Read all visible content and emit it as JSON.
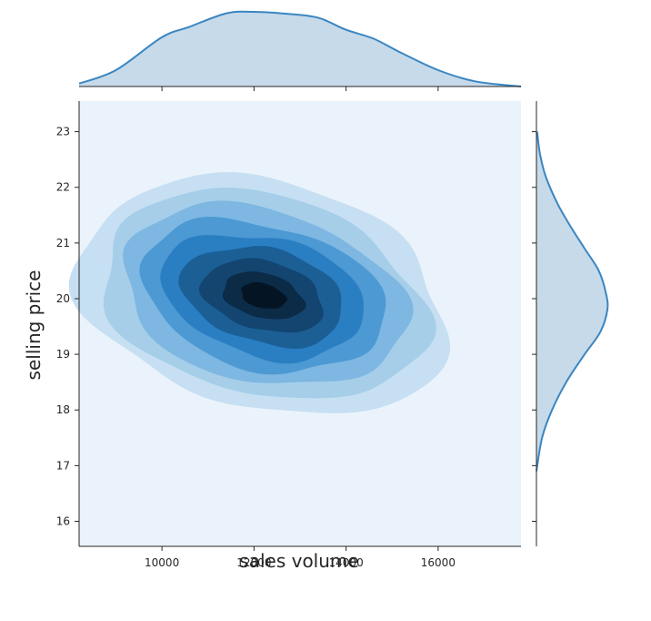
{
  "chart_data": {
    "type": "kde_joint",
    "xlabel": "sales volume",
    "ylabel": "selling price",
    "xlim": [
      8200,
      17800
    ],
    "ylim": [
      15.55,
      23.55
    ],
    "x_ticks": [
      10000,
      12000,
      14000,
      16000
    ],
    "x_tick_labels": [
      "10000",
      "12000",
      "14000",
      "16000"
    ],
    "y_ticks": [
      16,
      17,
      18,
      19,
      20,
      21,
      22,
      23
    ],
    "y_tick_labels": [
      "16",
      "17",
      "18",
      "19",
      "20",
      "21",
      "22",
      "23"
    ],
    "joint": {
      "center": {
        "x": 12200,
        "y": 20.05
      },
      "levels": [
        {
          "x_half_width": 4100,
          "y_half_width": 2.05,
          "color": "#c6dff2"
        },
        {
          "x_half_width": 3600,
          "y_half_width": 1.8,
          "color": "#a6cee9"
        },
        {
          "x_half_width": 3150,
          "y_half_width": 1.55,
          "color": "#7db7e2"
        },
        {
          "x_half_width": 2700,
          "y_half_width": 1.3,
          "color": "#4c99d3"
        },
        {
          "x_half_width": 2250,
          "y_half_width": 1.07,
          "color": "#2a7ec2"
        },
        {
          "x_half_width": 1800,
          "y_half_width": 0.85,
          "color": "#1b5f95"
        },
        {
          "x_half_width": 1350,
          "y_half_width": 0.62,
          "color": "#134570"
        },
        {
          "x_half_width": 900,
          "y_half_width": 0.4,
          "color": "#0b2b47"
        },
        {
          "x_half_width": 500,
          "y_half_width": 0.22,
          "color": "#051423"
        }
      ],
      "background": "#eaf3fb"
    },
    "marginal_x": {
      "x": [
        8200,
        9000,
        10000,
        10600,
        11400,
        12000,
        12800,
        13400,
        14000,
        14600,
        15200,
        16000,
        16800,
        17800
      ],
      "density": [
        0.04,
        0.22,
        0.66,
        0.8,
        0.98,
        1.0,
        0.97,
        0.92,
        0.76,
        0.64,
        0.45,
        0.22,
        0.07,
        0.0
      ]
    },
    "marginal_y": {
      "y": [
        16.9,
        17.5,
        18.0,
        18.5,
        19.0,
        19.4,
        19.8,
        20.1,
        20.5,
        20.9,
        21.3,
        21.7,
        22.2,
        22.6,
        23.0
      ],
      "density": [
        0.0,
        0.08,
        0.22,
        0.42,
        0.68,
        0.9,
        1.0,
        0.98,
        0.88,
        0.68,
        0.48,
        0.3,
        0.13,
        0.05,
        0.01
      ]
    },
    "colors": {
      "marginal_fill": "#c6daea",
      "marginal_line": "#3a86c1",
      "axis": "#262626"
    }
  }
}
